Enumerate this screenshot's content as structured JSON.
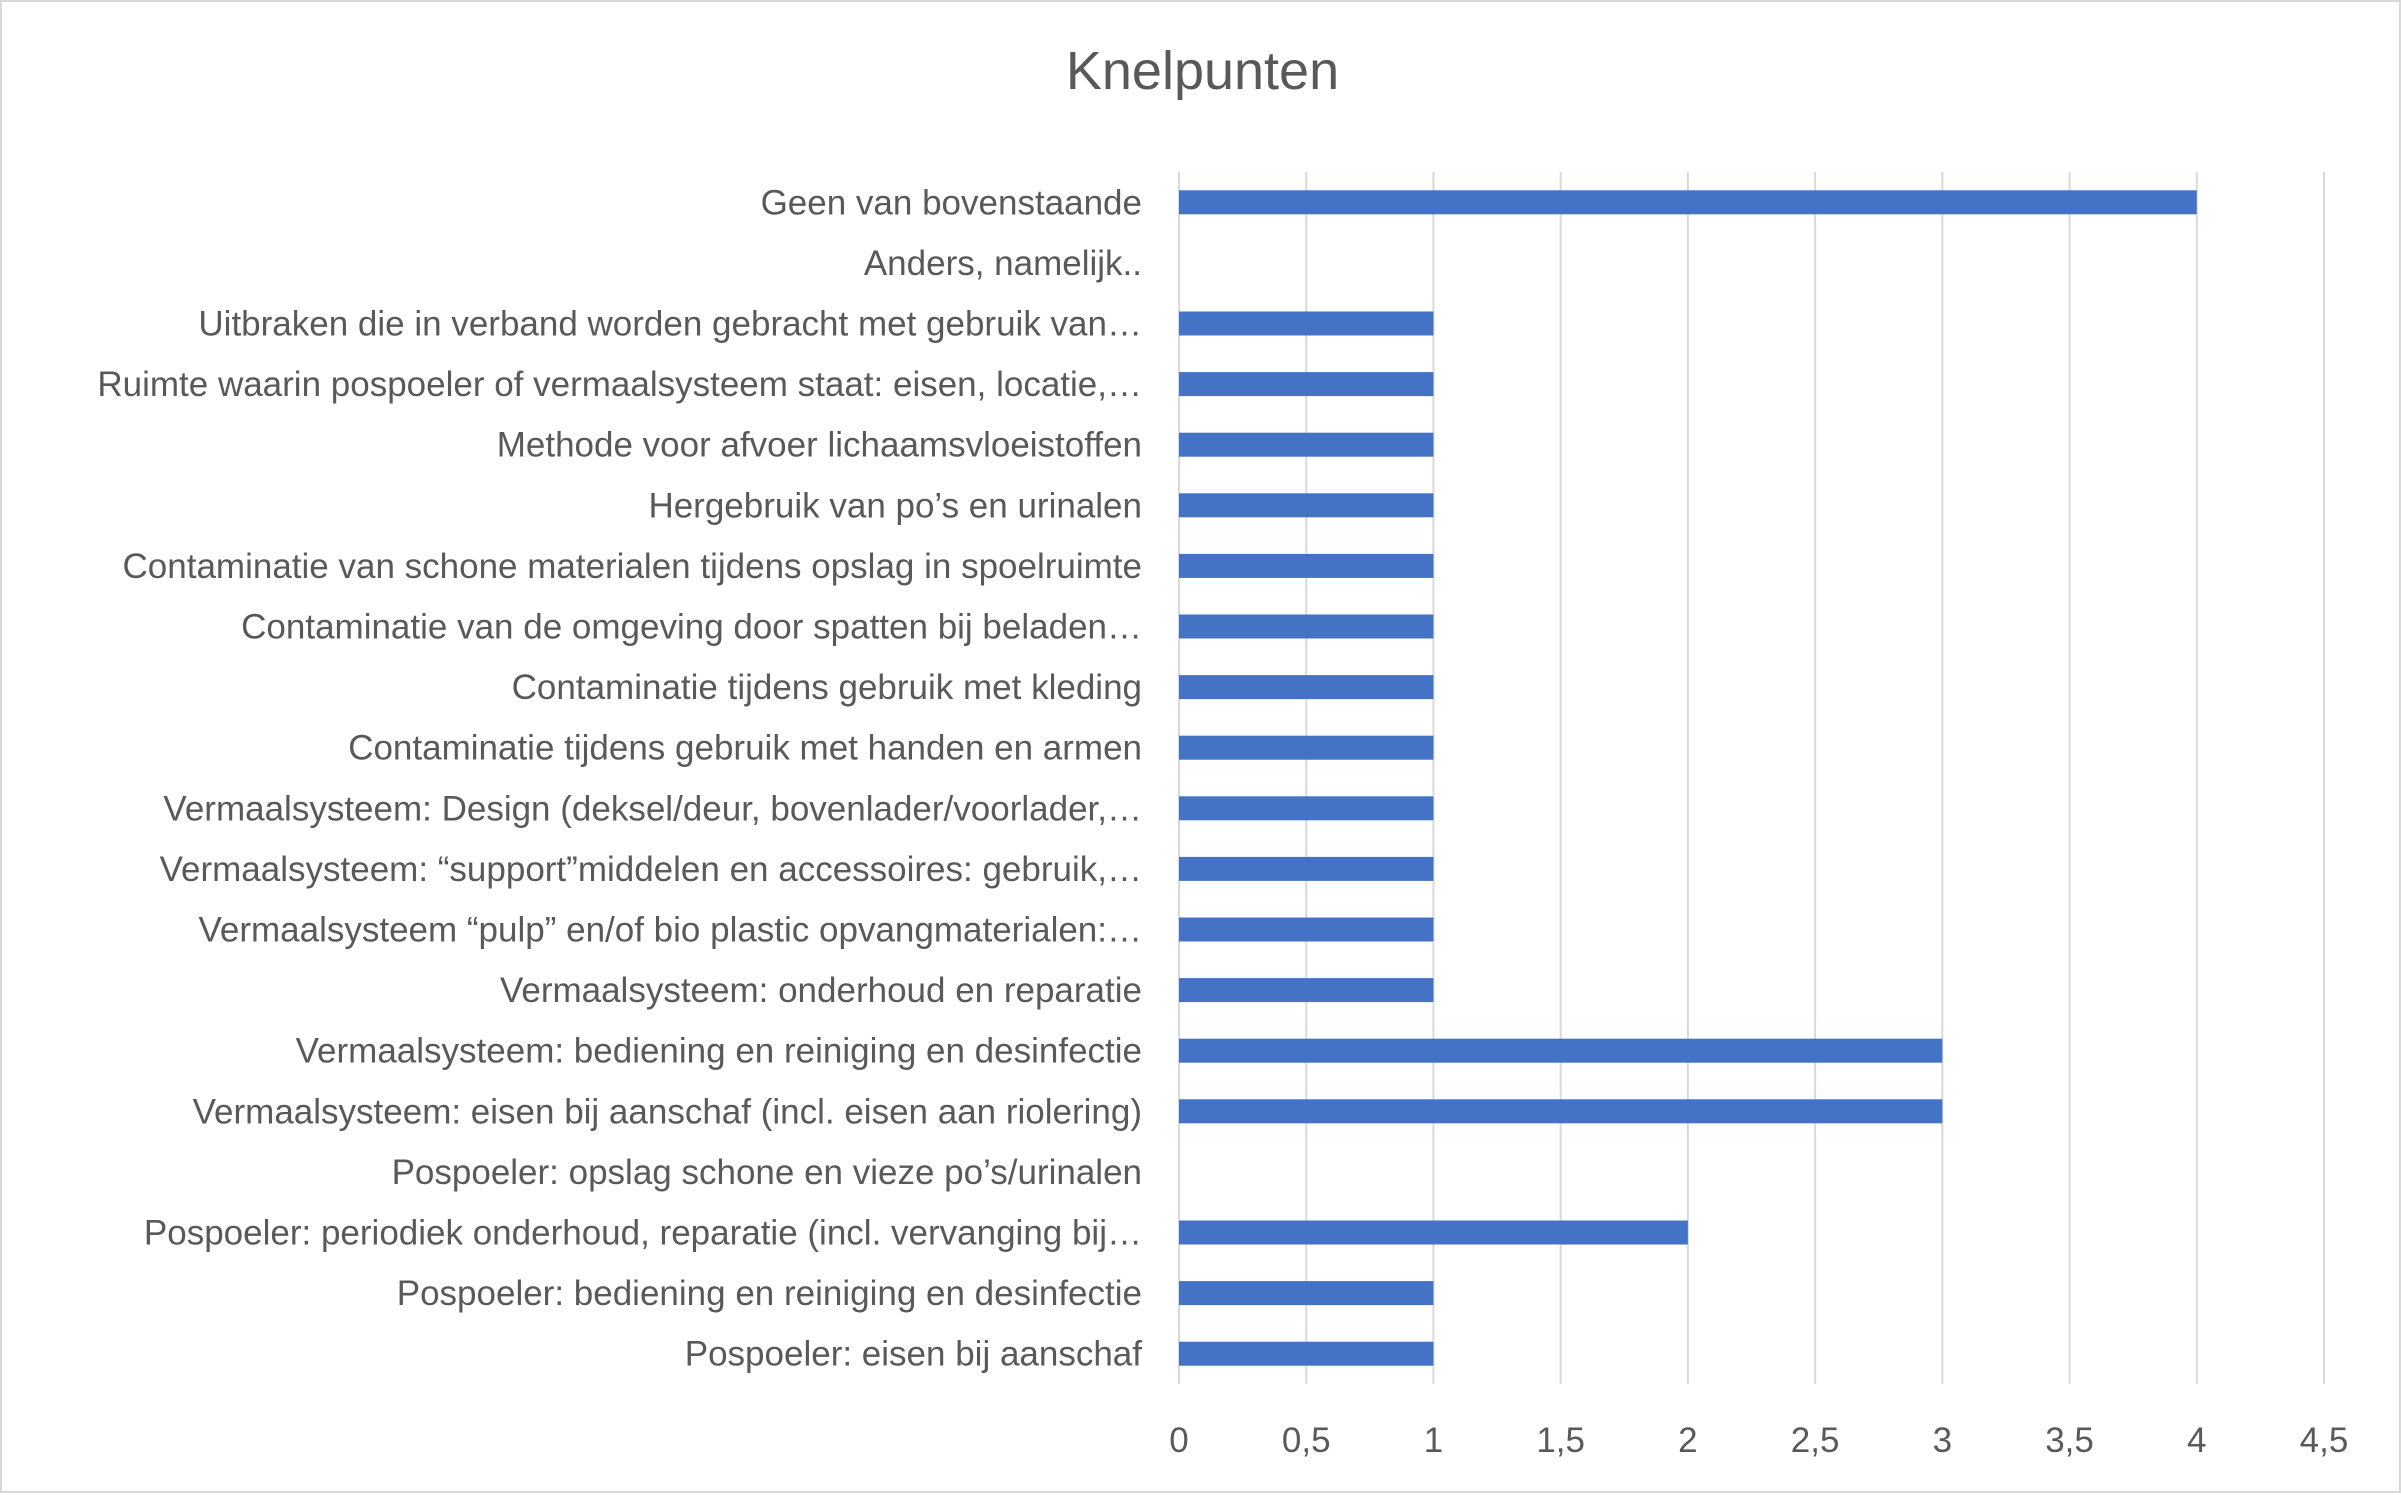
{
  "chart_data": {
    "type": "bar",
    "orientation": "horizontal",
    "title": "Knelpunten",
    "xlabel": "",
    "ylabel": "",
    "xlim": [
      0,
      4.5
    ],
    "xticks": [
      0,
      0.5,
      1,
      1.5,
      2,
      2.5,
      3,
      3.5,
      4,
      4.5
    ],
    "xtick_labels": [
      "0",
      "0,5",
      "1",
      "1,5",
      "2",
      "2,5",
      "3",
      "3,5",
      "4",
      "4,5"
    ],
    "grid": true,
    "legend": "none",
    "bar_color": "#4472C4",
    "categories": [
      "Geen van bovenstaande",
      "Anders, namelijk..",
      "Uitbraken die in verband worden gebracht met gebruik van…",
      "Ruimte waarin pospoeler of vermaalsysteem staat: eisen, locatie,…",
      "Methode voor afvoer lichaamsvloeistoffen",
      "Hergebruik van po’s en urinalen",
      "Contaminatie van schone materialen tijdens opslag in spoelruimte",
      "Contaminatie van de omgeving door spatten bij beladen…",
      "Contaminatie tijdens gebruik met kleding",
      "Contaminatie tijdens gebruik met handen en armen",
      "Vermaalsysteem: Design (deksel/deur, bovenlader/voorlader,…",
      "Vermaalsysteem: “support”middelen en accessoires: gebruik,…",
      "Vermaalsysteem “pulp” en/of bio plastic opvangmaterialen:…",
      "Vermaalsysteem: onderhoud en reparatie",
      "Vermaalsysteem: bediening en reiniging en desinfectie",
      "Vermaalsysteem: eisen bij aanschaf (incl. eisen aan riolering)",
      "Pospoeler: opslag schone en vieze po’s/urinalen",
      "Pospoeler: periodiek onderhoud, reparatie (incl. vervanging bij…",
      "Pospoeler: bediening en reiniging en desinfectie",
      "Pospoeler: eisen bij aanschaf"
    ],
    "values": [
      4,
      0,
      1,
      1,
      1,
      1,
      1,
      1,
      1,
      1,
      1,
      1,
      1,
      1,
      3,
      3,
      0,
      2,
      1,
      1
    ]
  }
}
